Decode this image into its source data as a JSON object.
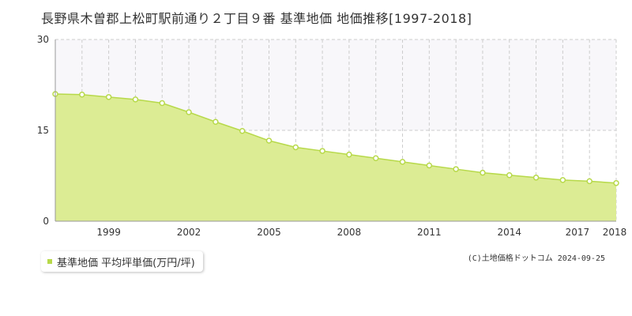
{
  "header": {
    "title": "長野県木曽郡上松町駅前通り２丁目９番 基準地価 地価推移[1997-2018]"
  },
  "legend": {
    "label": "基準地価 平均坪単価(万円/坪)",
    "color": "#b7d94a"
  },
  "footer": {
    "copyright": "(C)土地価格ドットコム 2024-09-25"
  },
  "chart_data": {
    "type": "area",
    "title": "長野県木曽郡上松町駅前通り２丁目９番 基準地価 地価推移[1997-2018]",
    "series": [
      {
        "name": "基準地価 平均坪単価(万円/坪)",
        "x": [
          1997,
          1998,
          1999,
          2000,
          2001,
          2002,
          2003,
          2004,
          2005,
          2006,
          2007,
          2008,
          2009,
          2010,
          2011,
          2012,
          2013,
          2014,
          2015,
          2016,
          2017,
          2018
        ],
        "values": [
          21.0,
          20.9,
          20.5,
          20.1,
          19.5,
          18.0,
          16.4,
          14.9,
          13.3,
          12.2,
          11.6,
          11.0,
          10.4,
          9.8,
          9.2,
          8.6,
          8.0,
          7.6,
          7.2,
          6.8,
          6.6,
          6.3
        ]
      }
    ],
    "xlim": [
      1997,
      2018
    ],
    "ylim": [
      0,
      30
    ],
    "x_tick_labels": [
      "1999",
      "2002",
      "2005",
      "2008",
      "2011",
      "2014",
      "2017",
      "2018"
    ],
    "y_tick_labels": [
      "0",
      "15",
      "30"
    ],
    "grid": true,
    "legend_position": "bottom-left",
    "colors": {
      "fill": "#dcec94",
      "line": "#b7d94a",
      "plot_band": "#f8f7fa",
      "grid": "#cccccc"
    }
  }
}
